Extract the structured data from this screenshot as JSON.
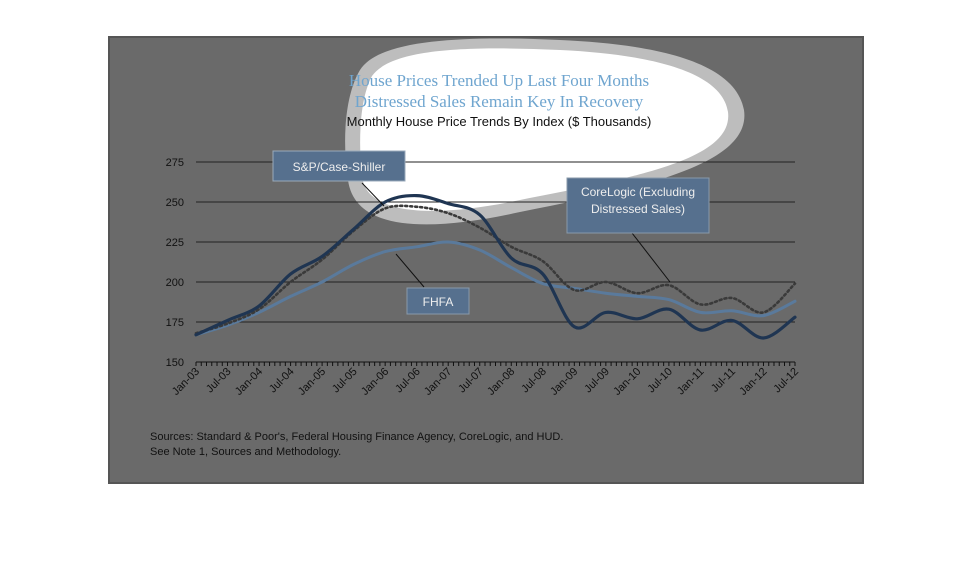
{
  "colors": {
    "frame": "#6a6a6a",
    "case_shiller": "#1f3552",
    "fhfa": "#5a7a9c",
    "corelogic": "#3a3a3a",
    "highlight": "#ffffff"
  },
  "chart_data": {
    "type": "line",
    "title": "House Prices Trended Up Last Four Months",
    "title_line2": "Distressed Sales Remain Key In Recovery",
    "subtitle": "Monthly House Price Trends By Index ($ Thousands)",
    "ylim": [
      150,
      275
    ],
    "yticks": [
      150,
      175,
      200,
      225,
      250,
      275
    ],
    "x_tick_labels": [
      "Jan-03",
      "Jul-03",
      "Jan-04",
      "Jul-04",
      "Jan-05",
      "Jul-05",
      "Jan-06",
      "Jul-06",
      "Jan-07",
      "Jul-07",
      "Jan-08",
      "Jul-08",
      "Jan-09",
      "Jul-09",
      "Jan-10",
      "Jul-10",
      "Jan-11",
      "Jul-11",
      "Jan-12",
      "Jul-12"
    ],
    "grid": "horizontal",
    "series": [
      {
        "name": "S&P/Case-Shiller",
        "style": "solid-thick",
        "values": [
          167,
          176,
          185,
          205,
          216,
          233,
          250,
          254,
          249,
          242,
          215,
          205,
          172,
          181,
          177,
          183,
          170,
          176,
          165,
          178
        ]
      },
      {
        "name": "FHFA",
        "style": "solid",
        "values": [
          167,
          173,
          181,
          191,
          200,
          211,
          219,
          222,
          225,
          220,
          209,
          199,
          196,
          193,
          191,
          189,
          181,
          182,
          179,
          188
        ]
      },
      {
        "name": "CoreLogic (Excluding Distressed Sales)",
        "style": "dotted",
        "values": [
          168,
          174,
          183,
          200,
          214,
          232,
          246,
          247,
          243,
          234,
          222,
          213,
          195,
          200,
          193,
          198,
          186,
          190,
          181,
          199
        ]
      }
    ]
  },
  "callouts": {
    "case_shiller": "S&P/Case-Shiller",
    "fhfa": "FHFA",
    "corelogic_line1": "CoreLogic (Excluding",
    "corelogic_line2": "Distressed Sales)"
  },
  "sources": {
    "line1": "Sources:  Standard & Poor's, Federal Housing Finance Agency, CoreLogic, and HUD.",
    "line2": "See Note 1, Sources and Methodology."
  }
}
